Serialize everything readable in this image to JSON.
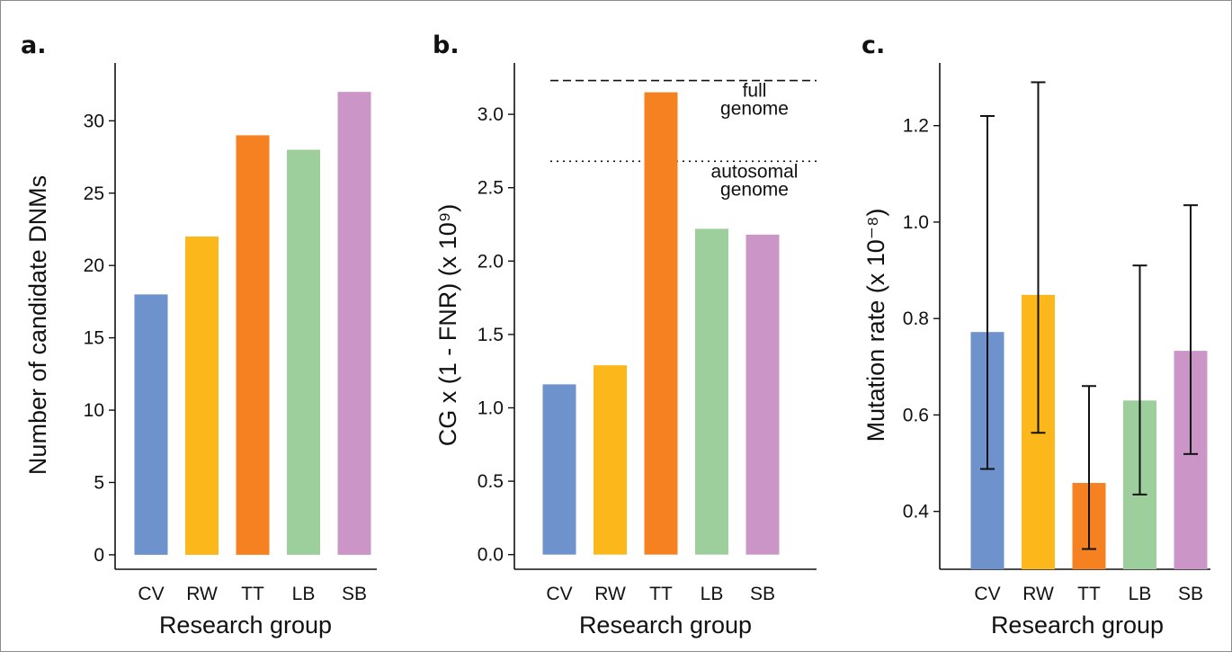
{
  "chart_data": [
    {
      "panel": "a.",
      "type": "bar",
      "categories": [
        "CV",
        "RW",
        "TT",
        "LB",
        "SB"
      ],
      "values": [
        18,
        22,
        29,
        28,
        32
      ],
      "colors": [
        "#6e92cb",
        "#fcb71b",
        "#f58121",
        "#9ccf9c",
        "#cc95c8"
      ],
      "xlabel": "Research group",
      "ylabel": "Number of candidate DNMs",
      "yticks": [
        "0",
        "5",
        "10",
        "15",
        "20",
        "25",
        "30"
      ],
      "ylim": [
        -1,
        34
      ],
      "grid": false
    },
    {
      "panel": "b.",
      "type": "bar",
      "categories": [
        "CV",
        "RW",
        "TT",
        "LB",
        "SB"
      ],
      "values": [
        1.16,
        1.29,
        3.15,
        2.22,
        2.18
      ],
      "colors": [
        "#6e92cb",
        "#fcb71b",
        "#f58121",
        "#9ccf9c",
        "#cc95c8"
      ],
      "xlabel": "Research group",
      "ylabel": "CG x (1 - FNR) (x 10⁹)",
      "yticks": [
        "0.0",
        "0.5",
        "1.0",
        "1.5",
        "2.0",
        "2.5",
        "3.0"
      ],
      "ylim": [
        -0.1,
        3.35
      ],
      "grid": false,
      "reference_lines": [
        {
          "value": 3.23,
          "style": "dashed",
          "label_lines": [
            "full",
            "genome"
          ]
        },
        {
          "value": 2.68,
          "style": "dotted",
          "label_lines": [
            "autosomal",
            "genome"
          ]
        }
      ]
    },
    {
      "panel": "c.",
      "type": "bar",
      "categories": [
        "CV",
        "RW",
        "TT",
        "LB",
        "SB"
      ],
      "values": [
        0.772,
        0.849,
        0.459,
        0.63,
        0.733
      ],
      "error_low": [
        0.488,
        0.563,
        0.322,
        0.435,
        0.519
      ],
      "error_high": [
        1.22,
        1.29,
        0.66,
        0.91,
        1.035
      ],
      "colors": [
        "#6e92cb",
        "#fcb71b",
        "#f58121",
        "#9ccf9c",
        "#cc95c8"
      ],
      "xlabel": "Research group",
      "ylabel": "Mutation rate (x 10⁻⁸)",
      "yticks": [
        "0.4",
        "0.6",
        "0.8",
        "1.0",
        "1.2"
      ],
      "ylim": [
        0.28,
        1.33
      ],
      "grid": false
    }
  ]
}
